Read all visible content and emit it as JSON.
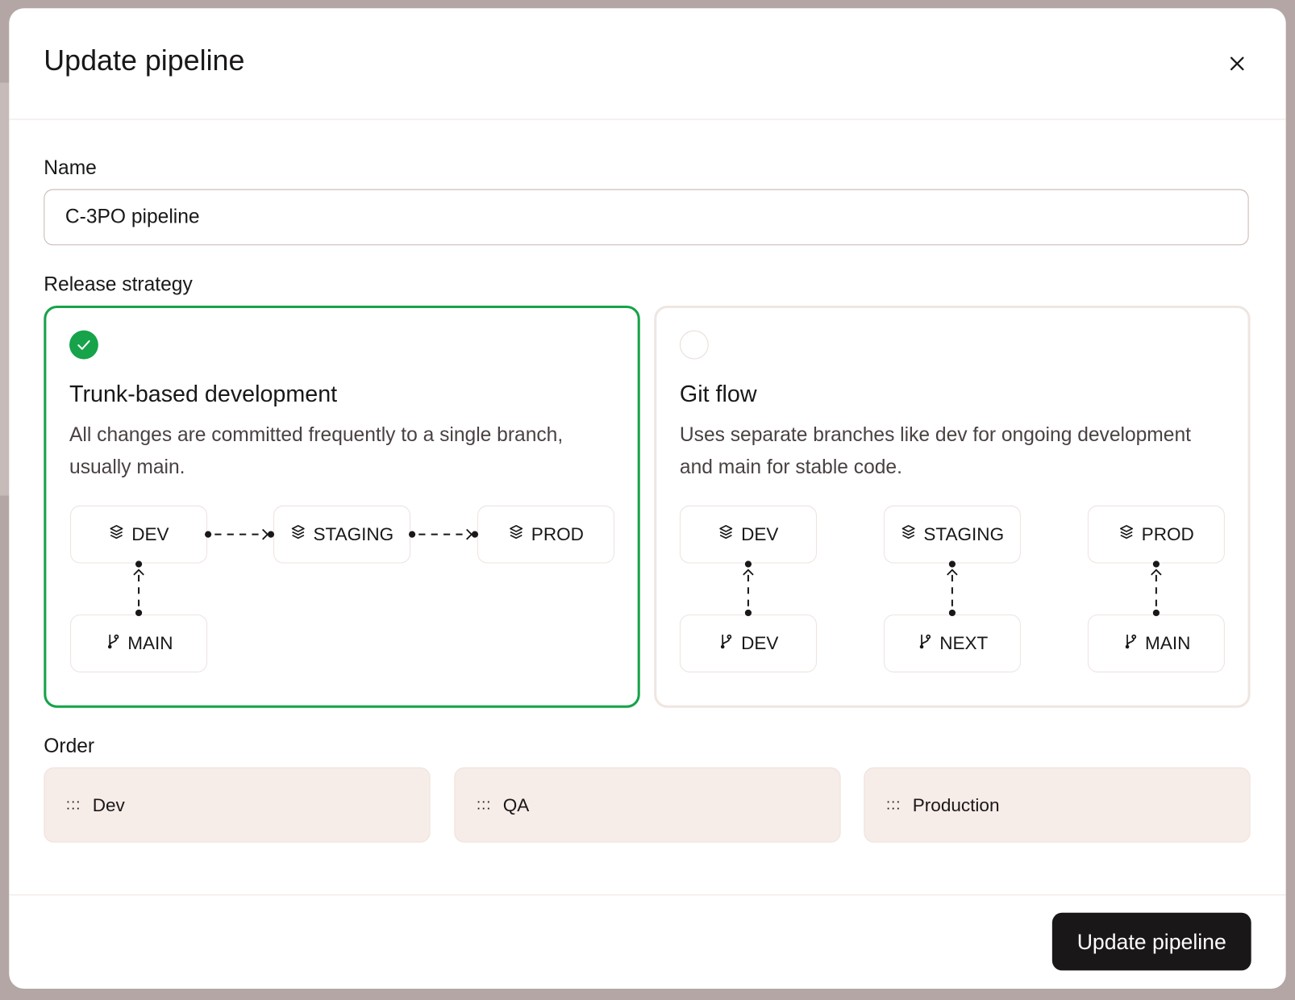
{
  "dialog": {
    "title": "Update pipeline",
    "close_icon": "close-icon"
  },
  "name_field": {
    "label": "Name",
    "value": "C-3PO pipeline"
  },
  "release_strategy": {
    "label": "Release strategy",
    "accent_color": "#16a34a",
    "options": [
      {
        "title": "Trunk-based development",
        "description": "All changes are committed frequently to a single branch, usually main.",
        "selected": true,
        "environments": [
          "DEV",
          "STAGING",
          "PROD"
        ],
        "branches": [
          "MAIN"
        ]
      },
      {
        "title": "Git flow",
        "description": "Uses separate branches like dev for ongoing development and main for stable code.",
        "selected": false,
        "environments": [
          "DEV",
          "STAGING",
          "PROD"
        ],
        "branches": [
          "DEV",
          "NEXT",
          "MAIN"
        ]
      }
    ]
  },
  "order": {
    "label": "Order",
    "grip": ":::",
    "items": [
      "Dev",
      "QA",
      "Production"
    ]
  },
  "footer": {
    "submit_label": "Update pipeline"
  }
}
